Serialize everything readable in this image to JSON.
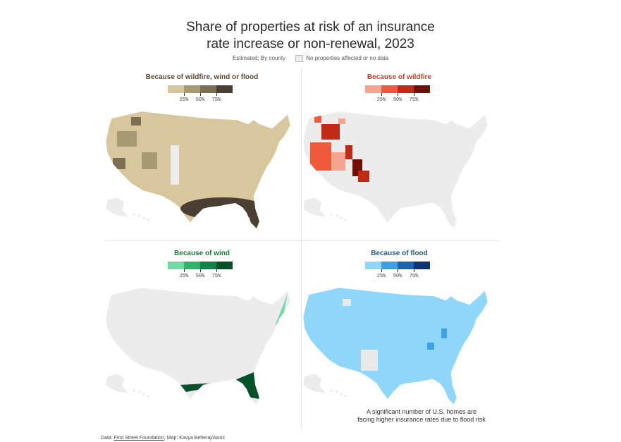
{
  "title": {
    "line1": "Share of properties at risk of an insurance",
    "line2": "rate increase or non-renewal, 2023"
  },
  "subtitle": {
    "estimated": "Estimated; By county",
    "nodata": "No properties affected or no data",
    "nodata_color": "#ececec"
  },
  "legend_ticks": [
    "25%",
    "50%",
    "75%"
  ],
  "panels": [
    {
      "key": "combined",
      "title": "Because of wildfire, wind or flood",
      "title_color": "#5b4a32",
      "scale": [
        "#d8c79c",
        "#a89a70",
        "#7c6f52",
        "#4a3f33"
      ]
    },
    {
      "key": "wildfire",
      "title": "Because of wildfire",
      "title_color": "#d13b1e",
      "scale": [
        "#f5a58f",
        "#ee5a3b",
        "#c12b16",
        "#6e0f08"
      ]
    },
    {
      "key": "wind",
      "title": "Because of wind",
      "title_color": "#1d7c3b",
      "scale": [
        "#72d9a4",
        "#2fb36b",
        "#12834a",
        "#06532a"
      ]
    },
    {
      "key": "flood",
      "title": "Because of flood",
      "title_color": "#1c5d8f",
      "scale": [
        "#8fd6fb",
        "#3ea1e6",
        "#1a66b0",
        "#0e3377"
      ]
    }
  ],
  "note": {
    "line1": "A significant number of U.S. homes are",
    "line2": "facing higher insurance rates due to flood risk"
  },
  "footer": {
    "prefix": "Data: ",
    "source": "First Street Foundation",
    "suffix": "; Map: Kavya Beheraj/Axios"
  }
}
